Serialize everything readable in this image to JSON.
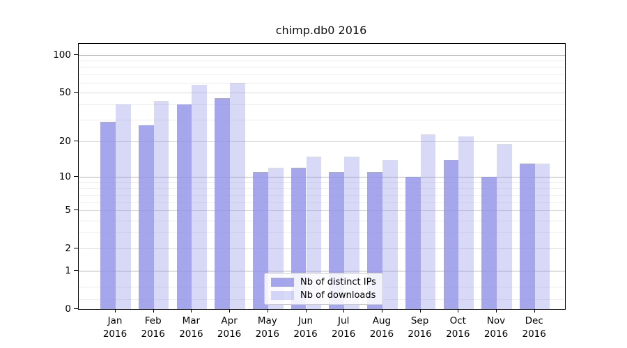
{
  "chart_data": {
    "type": "bar",
    "title": "chimp.db0 2016",
    "categories": [
      "Jan 2016",
      "Feb 2016",
      "Mar 2016",
      "Apr 2016",
      "May 2016",
      "Jun 2016",
      "Jul 2016",
      "Aug 2016",
      "Sep 2016",
      "Oct 2016",
      "Nov 2016",
      "Dec 2016"
    ],
    "month_labels": [
      "Jan",
      "Feb",
      "Mar",
      "Apr",
      "May",
      "Jun",
      "Jul",
      "Aug",
      "Sep",
      "Oct",
      "Nov",
      "Dec"
    ],
    "year_label": "2016",
    "series": [
      {
        "name": "Nb of distinct IPs",
        "color": "#a6a6ed",
        "values": [
          29,
          27,
          40,
          45,
          11,
          12,
          11,
          11,
          10,
          14,
          10,
          13
        ]
      },
      {
        "name": "Nb of downloads",
        "color": "#dbdbf6",
        "values": [
          40,
          43,
          58,
          60,
          12,
          15,
          15,
          14,
          23,
          22,
          19,
          13
        ]
      }
    ],
    "xlabel": "",
    "ylabel": "",
    "y_axis": {
      "scale": "symlog: position proportional to log10(1+value)",
      "tick_values": [
        100,
        50,
        20,
        10,
        5,
        2,
        1,
        0
      ],
      "tick_labels": [
        "100",
        "50",
        "20",
        "10",
        "5",
        "2",
        "1",
        "0"
      ],
      "minor_tick_values": [
        90,
        80,
        70,
        60,
        40,
        30,
        9,
        8,
        7,
        6,
        4,
        3,
        0.5,
        0.2
      ],
      "range": [
        0,
        122
      ]
    },
    "grid": "horizontal",
    "legend": {
      "position": "lower center",
      "entries": [
        "Nb of distinct IPs",
        "Nb of downloads"
      ]
    },
    "colors": {
      "bar_base": "#9090e8",
      "grid_major": "#b3b3b3",
      "grid_mid": "#d9d9d9",
      "grid_minor": "#ececec",
      "spine": "#000000",
      "background": "#ffffff"
    }
  }
}
